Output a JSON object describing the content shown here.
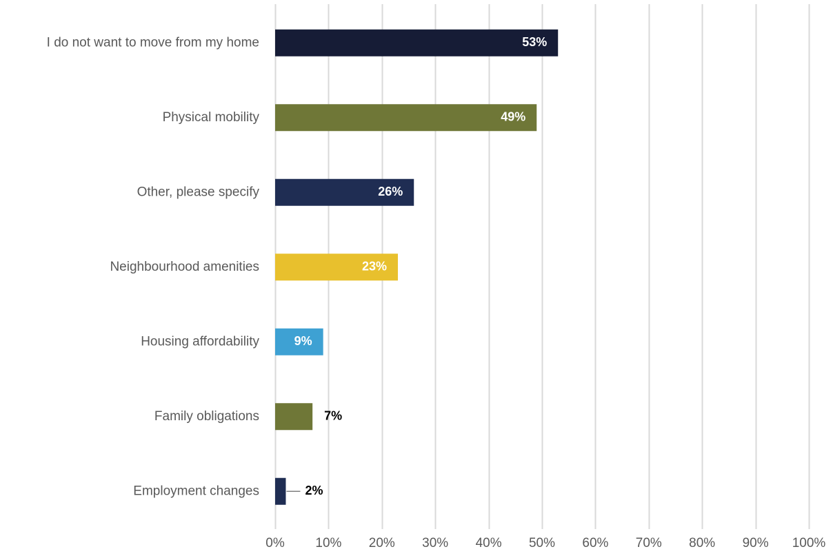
{
  "chart_data": {
    "type": "bar",
    "orientation": "horizontal",
    "title": "",
    "xlabel": "",
    "ylabel": "",
    "categories": [
      "I do not want to move from my home",
      "Physical mobility",
      "Other, please specify",
      "Neighbourhood amenities",
      "Housing affordability",
      "Family obligations",
      "Employment changes"
    ],
    "values": [
      53,
      49,
      26,
      23,
      9,
      7,
      2
    ],
    "value_labels": [
      "53%",
      "49%",
      "26%",
      "23%",
      "9%",
      "7%",
      "2%"
    ],
    "bar_colors": [
      "#161c36",
      "#6f7737",
      "#1f2d53",
      "#e8c02d",
      "#3ea1d3",
      "#6f7737",
      "#1f2d53"
    ],
    "label_inside": [
      true,
      true,
      true,
      true,
      true,
      false,
      false
    ],
    "label_leader_line": [
      false,
      false,
      false,
      false,
      false,
      false,
      true
    ],
    "xlim": [
      0,
      100
    ],
    "x_ticks": [
      0,
      10,
      20,
      30,
      40,
      50,
      60,
      70,
      80,
      90,
      100
    ],
    "x_tick_labels": [
      "0%",
      "10%",
      "20%",
      "30%",
      "40%",
      "50%",
      "60%",
      "70%",
      "80%",
      "90%",
      "100%"
    ],
    "grid": true,
    "legend": "none",
    "colors": {
      "gridline": "#d9d9d9",
      "text": "#595959",
      "inside_label": "#ffffff",
      "outside_label": "#000000",
      "leader_line": "#7f7f7f"
    }
  }
}
